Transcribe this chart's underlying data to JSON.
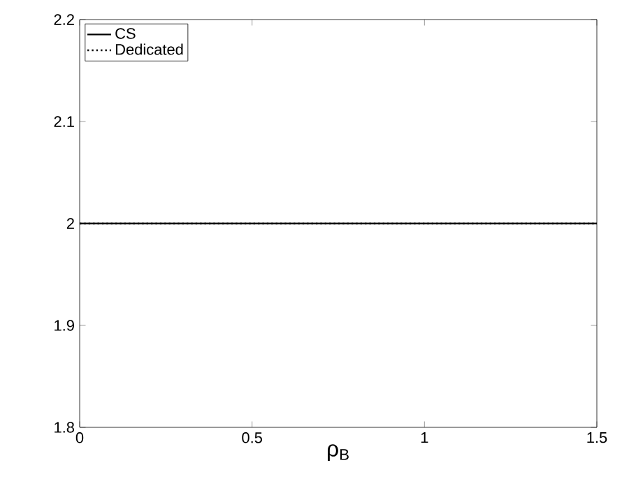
{
  "chart_data": {
    "type": "line",
    "xlabel": "ρ$_{B}$",
    "x": [
      0,
      1.5
    ],
    "series": [
      {
        "name": "CS",
        "color": "#000000",
        "line_style": "solid",
        "values": [
          2,
          2
        ]
      },
      {
        "name": "Dedicated",
        "color": "#000000",
        "line_style": "dotted",
        "values": [
          2,
          2
        ]
      }
    ],
    "xlim": [
      0,
      1.5
    ],
    "ylim": [
      1.8,
      2.2
    ],
    "xticks": [
      0,
      0.5,
      1,
      1.5
    ],
    "yticks": [
      1.8,
      1.9,
      2,
      2.1,
      2.2
    ],
    "legend": "top left",
    "grid": false,
    "marker": "none"
  }
}
